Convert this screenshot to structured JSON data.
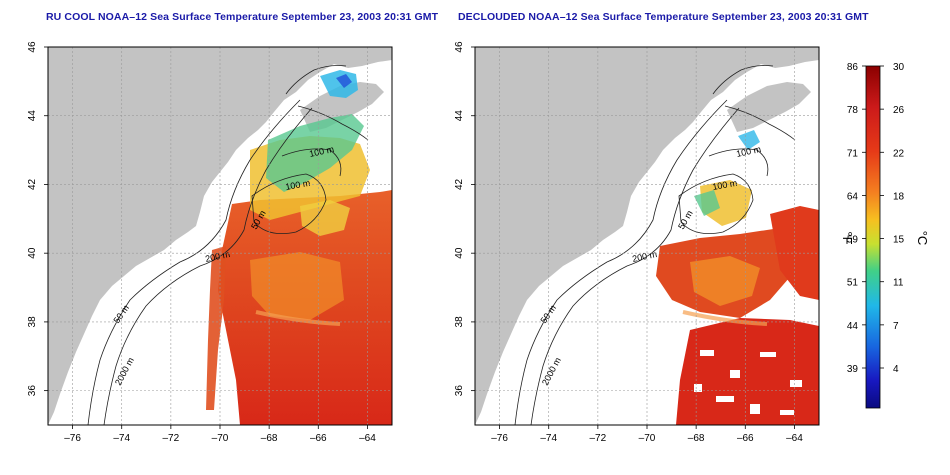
{
  "panels": [
    {
      "title": "RU COOL NOAA–12 Sea Surface Temperature September 23, 2003 20:31 GMT",
      "variant": "raw"
    },
    {
      "title": "DECLOUDED NOAA–12 Sea Surface Temperature September 23, 2003 20:31 GMT",
      "variant": "declouded"
    }
  ],
  "map": {
    "lon_range": [
      -77,
      -63
    ],
    "lat_range": [
      35,
      46
    ],
    "lon_ticks": [
      "–76",
      "–74",
      "–72",
      "–70",
      "–68",
      "–66",
      "–64"
    ],
    "lat_ticks": [
      "36",
      "38",
      "40",
      "42",
      "44",
      "46"
    ],
    "lon_tick_values": [
      -76,
      -74,
      -72,
      -70,
      -68,
      -66,
      -64
    ],
    "lat_tick_values": [
      36,
      38,
      40,
      42,
      44,
      46
    ],
    "grid": true,
    "land_color": "#c3c3c3",
    "ocean_no_data_color": "#ffffff",
    "contour_labels": [
      {
        "text": "100 m"
      },
      {
        "text": "100 m"
      },
      {
        "text": "50 m"
      },
      {
        "text": "200 m"
      },
      {
        "text": "50 m"
      },
      {
        "text": "2000 m"
      }
    ]
  },
  "colorbar": {
    "celsius_label": "°C",
    "fahrenheit_label": "°F",
    "celsius_ticks": [
      "30",
      "26",
      "22",
      "18",
      "15",
      "11",
      "7",
      "4"
    ],
    "fahrenheit_ticks": [
      "86",
      "78",
      "71",
      "64",
      "59",
      "51",
      "44",
      "39"
    ],
    "colors": [
      "#8b0000",
      "#cc1a1a",
      "#e83a1a",
      "#f47a20",
      "#f6c020",
      "#b8e02a",
      "#38d08c",
      "#22b8e8",
      "#1866e0",
      "#1818c0",
      "#0a0a80"
    ]
  }
}
